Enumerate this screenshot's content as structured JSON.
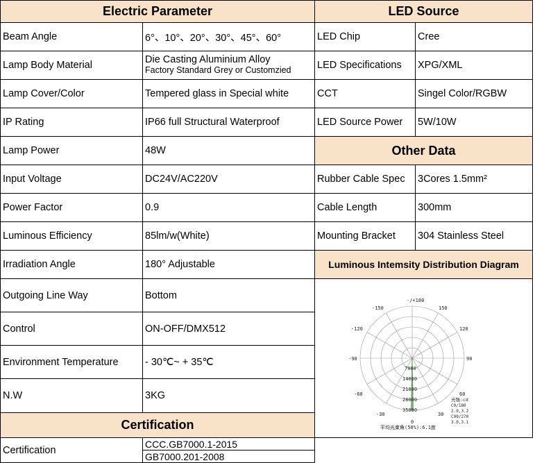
{
  "electric": {
    "header": "Electric Parameter",
    "rows": [
      {
        "label": "Beam Angle",
        "value": "6°、10°、20°、30°、45°、60°"
      },
      {
        "label": "Lamp Body Material",
        "value_line1": "Die Casting  Aluminium Alloy",
        "value_line2": "Factory Standard Grey or Customzied"
      },
      {
        "label": "Lamp Cover/Color",
        "value": "Tempered glass in Special white"
      },
      {
        "label": "IP Rating",
        "value": "IP66  full Structural Waterproof"
      },
      {
        "label": "Lamp Power",
        "value": "48W"
      },
      {
        "label": "Input Voltage",
        "value": "DC24V/AC220V"
      },
      {
        "label": "Power Factor",
        "value": "0.9"
      },
      {
        "label": "Luminous Efficiency",
        "value": "85lm/w(White)"
      },
      {
        "label": " Irradiation Angle",
        "value": "180° Adjustable"
      },
      {
        "label": "Outgoing Line Way",
        "value": "Bottom"
      },
      {
        "label": "Control",
        "value": "ON-OFF/DMX512"
      },
      {
        "label": " Environment Temperature",
        "value": " - 30℃~ + 35℃"
      },
      {
        "label": "N.W",
        "value": "3KG"
      }
    ]
  },
  "certification": {
    "header": "Certification",
    "label": "Certification",
    "values": [
      "CCC.GB7000.1-2015",
      "GB7000.201-2008"
    ]
  },
  "led": {
    "header": "LED Source",
    "rows": [
      {
        "label": "LED Chip",
        "value": "Cree"
      },
      {
        "label": "LED Specifications",
        "value": "XPG/XML"
      },
      {
        "label": "CCT",
        "value": "Singel Color/RGBW"
      },
      {
        "label": "LED Source Power",
        "value": "5W/10W"
      }
    ]
  },
  "other": {
    "header": "Other Data",
    "rows": [
      {
        "label": "Rubber Cable Spec",
        "value": "3Cores 1.5mm²"
      },
      {
        "label": "Cable Length",
        "value": "300mm"
      },
      {
        "label": "Mounting  Bracket",
        "value": "304 Stainless Steel"
      }
    ]
  },
  "diagram": {
    "header": "Luminous Intemsity Distribution Diagram",
    "angle_labels": {
      "top": "-/+180",
      "l150": "-150",
      "r150": "150",
      "l120": "-120",
      "r120": "120",
      "l90": "-90",
      "r90": "90",
      "l60": "-60",
      "r60": "60",
      "l30": "-30",
      "r30": "30",
      "bottom": "0"
    },
    "ring_values": [
      "7000",
      "14000",
      "21000",
      "28000",
      "35000"
    ],
    "legend_title": "光强:cd",
    "legend_lines": [
      "C0/180",
      "2.9,3.2",
      "C90/270",
      "3.0,3.1"
    ],
    "caption": "平均光束角(50%):6.1度"
  },
  "colors": {
    "header_bg": "#f9e3c8",
    "curve": "#4a9a3a"
  }
}
